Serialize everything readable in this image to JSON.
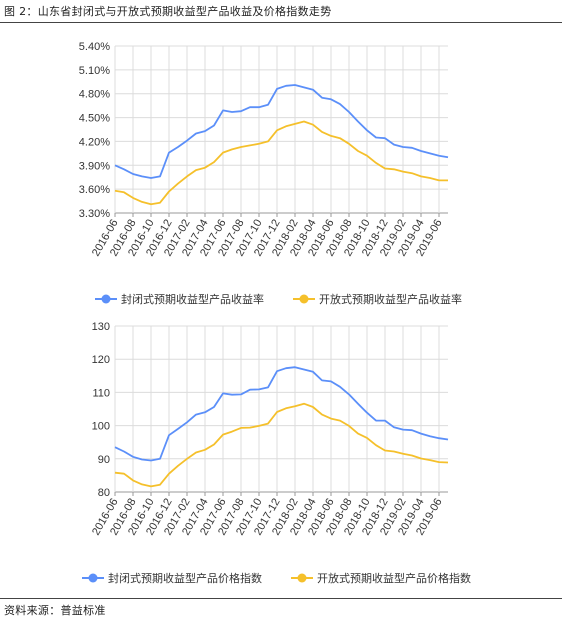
{
  "figure": {
    "title": "图 2：山东省封闭式与开放式预期收益型产品收益及价格指数走势",
    "source": "资料来源：普益标准"
  },
  "colors": {
    "blue": "#5b8ff9",
    "yellow": "#f5c02b",
    "grid": "#dcdcdc",
    "axis": "#999999"
  },
  "chart_data": [
    {
      "type": "line",
      "title": "",
      "xlabel": "",
      "ylabel": "",
      "x": [
        "2016-06",
        "2016-07",
        "2016-08",
        "2016-09",
        "2016-10",
        "2016-11",
        "2016-12",
        "2017-01",
        "2017-02",
        "2017-03",
        "2017-04",
        "2017-05",
        "2017-06",
        "2017-07",
        "2017-08",
        "2017-09",
        "2017-10",
        "2017-11",
        "2017-12",
        "2018-01",
        "2018-02",
        "2018-03",
        "2018-04",
        "2018-05",
        "2018-06",
        "2018-07",
        "2018-08",
        "2018-09",
        "2018-10",
        "2018-11",
        "2018-12",
        "2019-01",
        "2019-02",
        "2019-03",
        "2019-04",
        "2019-05",
        "2019-06",
        "2019-07"
      ],
      "x_tick_labels": [
        "2016-06",
        "2016-08",
        "2016-10",
        "2016-12",
        "2017-02",
        "2017-04",
        "2017-06",
        "2017-08",
        "2017-10",
        "2017-12",
        "2018-02",
        "2018-04",
        "2018-06",
        "2018-08",
        "2018-10",
        "2018-12",
        "2019-02",
        "2019-04",
        "2019-06"
      ],
      "y_tick_labels": [
        "3.30%",
        "3.60%",
        "3.90%",
        "4.20%",
        "4.50%",
        "4.80%",
        "5.10%",
        "5.40%"
      ],
      "ylim": [
        3.3,
        5.4
      ],
      "grid": true,
      "legend_position": "bottom",
      "series": [
        {
          "name": "封闭式预期收益型产品收益率",
          "color": "#5b8ff9",
          "values": [
            3.9,
            3.85,
            3.79,
            3.76,
            3.74,
            3.76,
            4.06,
            4.13,
            4.21,
            4.3,
            4.33,
            4.4,
            4.59,
            4.57,
            4.58,
            4.63,
            4.63,
            4.66,
            4.86,
            4.9,
            4.91,
            4.88,
            4.85,
            4.75,
            4.73,
            4.67,
            4.57,
            4.45,
            4.34,
            4.25,
            4.24,
            4.16,
            4.13,
            4.12,
            4.08,
            4.05,
            4.02,
            4.0
          ]
        },
        {
          "name": "开放式预期收益型产品收益率",
          "color": "#f5c02b",
          "values": [
            3.58,
            3.56,
            3.49,
            3.44,
            3.41,
            3.43,
            3.57,
            3.67,
            3.76,
            3.84,
            3.87,
            3.94,
            4.06,
            4.1,
            4.13,
            4.15,
            4.17,
            4.2,
            4.34,
            4.39,
            4.42,
            4.45,
            4.41,
            4.32,
            4.27,
            4.24,
            4.17,
            4.08,
            4.02,
            3.93,
            3.86,
            3.85,
            3.82,
            3.8,
            3.76,
            3.74,
            3.71,
            3.71
          ]
        }
      ]
    },
    {
      "type": "line",
      "title": "",
      "xlabel": "",
      "ylabel": "",
      "x": [
        "2016-06",
        "2016-07",
        "2016-08",
        "2016-09",
        "2016-10",
        "2016-11",
        "2016-12",
        "2017-01",
        "2017-02",
        "2017-03",
        "2017-04",
        "2017-05",
        "2017-06",
        "2017-07",
        "2017-08",
        "2017-09",
        "2017-10",
        "2017-11",
        "2017-12",
        "2018-01",
        "2018-02",
        "2018-03",
        "2018-04",
        "2018-05",
        "2018-06",
        "2018-07",
        "2018-08",
        "2018-09",
        "2018-10",
        "2018-11",
        "2018-12",
        "2019-01",
        "2019-02",
        "2019-03",
        "2019-04",
        "2019-05",
        "2019-06",
        "2019-07"
      ],
      "x_tick_labels": [
        "2016-06",
        "2016-08",
        "2016-10",
        "2016-12",
        "2017-02",
        "2017-04",
        "2017-06",
        "2017-08",
        "2017-10",
        "2017-12",
        "2018-02",
        "2018-04",
        "2018-06",
        "2018-08",
        "2018-10",
        "2018-12",
        "2019-02",
        "2019-04",
        "2019-06"
      ],
      "y_tick_labels": [
        "80",
        "90",
        "100",
        "110",
        "120",
        "130"
      ],
      "ylim": [
        80,
        130
      ],
      "grid": true,
      "legend_position": "bottom",
      "series": [
        {
          "name": "封闭式预期收益型产品价格指数",
          "color": "#5b8ff9",
          "values": [
            93.5,
            92.2,
            90.6,
            89.8,
            89.5,
            90.0,
            97.1,
            99.0,
            101.0,
            103.3,
            104.0,
            105.6,
            109.7,
            109.3,
            109.4,
            110.8,
            110.9,
            111.5,
            116.4,
            117.3,
            117.6,
            116.9,
            116.2,
            113.6,
            113.3,
            111.7,
            109.4,
            106.6,
            103.9,
            101.5,
            101.5,
            99.5,
            98.8,
            98.6,
            97.6,
            96.8,
            96.2,
            95.8
          ]
        },
        {
          "name": "开放式预期收益型产品价格指数",
          "color": "#f5c02b",
          "values": [
            85.8,
            85.5,
            83.5,
            82.3,
            81.7,
            82.2,
            85.5,
            87.9,
            90.0,
            91.9,
            92.7,
            94.3,
            97.3,
            98.2,
            99.3,
            99.4,
            99.9,
            100.6,
            104.1,
            105.2,
            105.8,
            106.6,
            105.6,
            103.3,
            102.1,
            101.5,
            99.9,
            97.6,
            96.3,
            94.1,
            92.5,
            92.2,
            91.5,
            91.0,
            90.1,
            89.6,
            89.0,
            88.9
          ]
        }
      ]
    }
  ]
}
